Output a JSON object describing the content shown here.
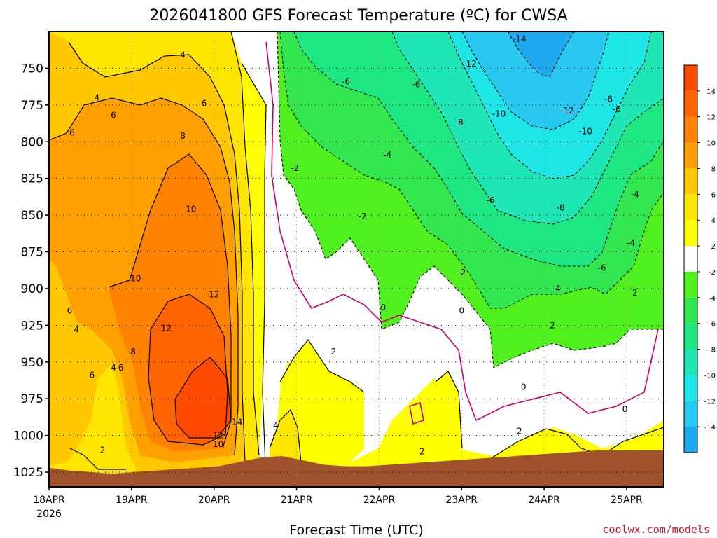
{
  "chart_data": {
    "type": "heatmap",
    "title": "2026041800 GFS Forecast Temperature (ºC) for CWSA",
    "xlabel": "Forecast Time (UTC)",
    "ylabel": "",
    "credit": "coolwx.com/models",
    "x_ticks": [
      "18APR",
      "19APR",
      "20APR",
      "21APR",
      "22APR",
      "23APR",
      "24APR",
      "25APR"
    ],
    "x_tick_year": "2026",
    "x_range_days": [
      0,
      7.45
    ],
    "y_ticks": [
      750,
      775,
      800,
      825,
      850,
      875,
      900,
      925,
      950,
      975,
      1000,
      1025
    ],
    "y_tick_labels": [
      "750",
      "775",
      "800",
      "825",
      "850",
      "875",
      "900",
      "925",
      "950",
      "975",
      "1000",
      "1025"
    ],
    "y_range_hpa": [
      725,
      1035
    ],
    "color_scale": {
      "boundaries": [
        -16,
        -14,
        -12,
        -10,
        -8,
        -6,
        -4,
        -2,
        2,
        4,
        6,
        8,
        10,
        12,
        14,
        16
      ],
      "tick_labels": [
        "-14",
        "-12",
        "-10",
        "-8",
        "-6",
        "-4",
        "-2",
        "2",
        "4",
        "6",
        "8",
        "10",
        "12",
        "14"
      ],
      "colors": [
        "#1ea8f0",
        "#28c8f0",
        "#1ee6e6",
        "#1ee6b4",
        "#1ee682",
        "#32e650",
        "#50f01e",
        "#ffffff",
        "#ffff00",
        "#ffe600",
        "#ffc800",
        "#ffa000",
        "#ff8200",
        "#ff6400",
        "#ff4a00"
      ],
      "terrain_color": "#a0522d",
      "zero_contour_color": "#c8006e"
    },
    "surface_pressure_hpa": [
      1022,
      1024,
      1025,
      1026,
      1025,
      1024,
      1023,
      1022,
      1021,
      1018,
      1015,
      1014,
      1017,
      1020,
      1021,
      1021,
      1020,
      1019,
      1018,
      1017,
      1016,
      1015,
      1014,
      1013,
      1012,
      1011,
      1010,
      1010,
      1010,
      1010
    ],
    "contour_labels": [
      {
        "text": "4",
        "day": 1.62,
        "p": 741
      },
      {
        "text": "4",
        "day": 0.58,
        "p": 770
      },
      {
        "text": "6",
        "day": 0.78,
        "p": 782
      },
      {
        "text": "6",
        "day": 0.28,
        "p": 794
      },
      {
        "text": "6",
        "day": 1.88,
        "p": 774
      },
      {
        "text": "8",
        "day": 1.62,
        "p": 796
      },
      {
        "text": "10",
        "day": 1.72,
        "p": 846
      },
      {
        "text": "10",
        "day": 1.05,
        "p": 893
      },
      {
        "text": "12",
        "day": 2.0,
        "p": 904
      },
      {
        "text": "12",
        "day": 1.42,
        "p": 927
      },
      {
        "text": "14",
        "day": 2.28,
        "p": 991
      },
      {
        "text": "12",
        "day": 2.05,
        "p": 1000
      },
      {
        "text": "10",
        "day": 2.05,
        "p": 1006
      },
      {
        "text": "8",
        "day": 1.02,
        "p": 943
      },
      {
        "text": "6",
        "day": 0.25,
        "p": 915
      },
      {
        "text": "4",
        "day": 0.33,
        "p": 928
      },
      {
        "text": "4",
        "day": 0.78,
        "p": 954
      },
      {
        "text": "6",
        "day": 0.87,
        "p": 954
      },
      {
        "text": "6",
        "day": 0.52,
        "p": 959
      },
      {
        "text": "2",
        "day": 0.65,
        "p": 1010
      },
      {
        "text": "4",
        "day": 2.75,
        "p": 993
      },
      {
        "text": "2",
        "day": 3.45,
        "p": 943
      },
      {
        "text": "-2",
        "day": 2.98,
        "p": 818
      },
      {
        "text": "-2",
        "day": 3.8,
        "p": 851
      },
      {
        "text": "-4",
        "day": 4.1,
        "p": 809
      },
      {
        "text": "-6",
        "day": 3.6,
        "p": 759
      },
      {
        "text": "-6",
        "day": 4.45,
        "p": 761
      },
      {
        "text": "-8",
        "day": 4.97,
        "p": 787
      },
      {
        "text": "-10",
        "day": 5.45,
        "p": 781
      },
      {
        "text": "-12",
        "day": 5.1,
        "p": 747
      },
      {
        "text": "-14",
        "day": 5.7,
        "p": 730
      },
      {
        "text": "-12",
        "day": 6.28,
        "p": 779
      },
      {
        "text": "-10",
        "day": 6.5,
        "p": 793
      },
      {
        "text": "-8",
        "day": 6.78,
        "p": 771
      },
      {
        "text": "-6",
        "day": 6.88,
        "p": 778
      },
      {
        "text": "-8",
        "day": 6.2,
        "p": 845
      },
      {
        "text": "-6",
        "day": 5.35,
        "p": 840
      },
      {
        "text": "-4",
        "day": 6.15,
        "p": 900
      },
      {
        "text": "-6",
        "day": 6.7,
        "p": 886
      },
      {
        "text": "-4",
        "day": 7.05,
        "p": 869
      },
      {
        "text": "-4",
        "day": 7.1,
        "p": 836
      },
      {
        "text": "-2",
        "day": 5.0,
        "p": 889
      },
      {
        "text": "2",
        "day": 7.1,
        "p": 903
      },
      {
        "text": "2",
        "day": 6.1,
        "p": 925
      },
      {
        "text": "2",
        "day": 5.7,
        "p": 997
      },
      {
        "text": "2",
        "day": 4.52,
        "p": 1011
      },
      {
        "text": "0",
        "day": 4.05,
        "p": 913
      },
      {
        "text": "0",
        "day": 5.0,
        "p": 915
      },
      {
        "text": "0",
        "day": 5.75,
        "p": 967
      },
      {
        "text": "0",
        "day": 6.98,
        "p": 982
      }
    ]
  }
}
